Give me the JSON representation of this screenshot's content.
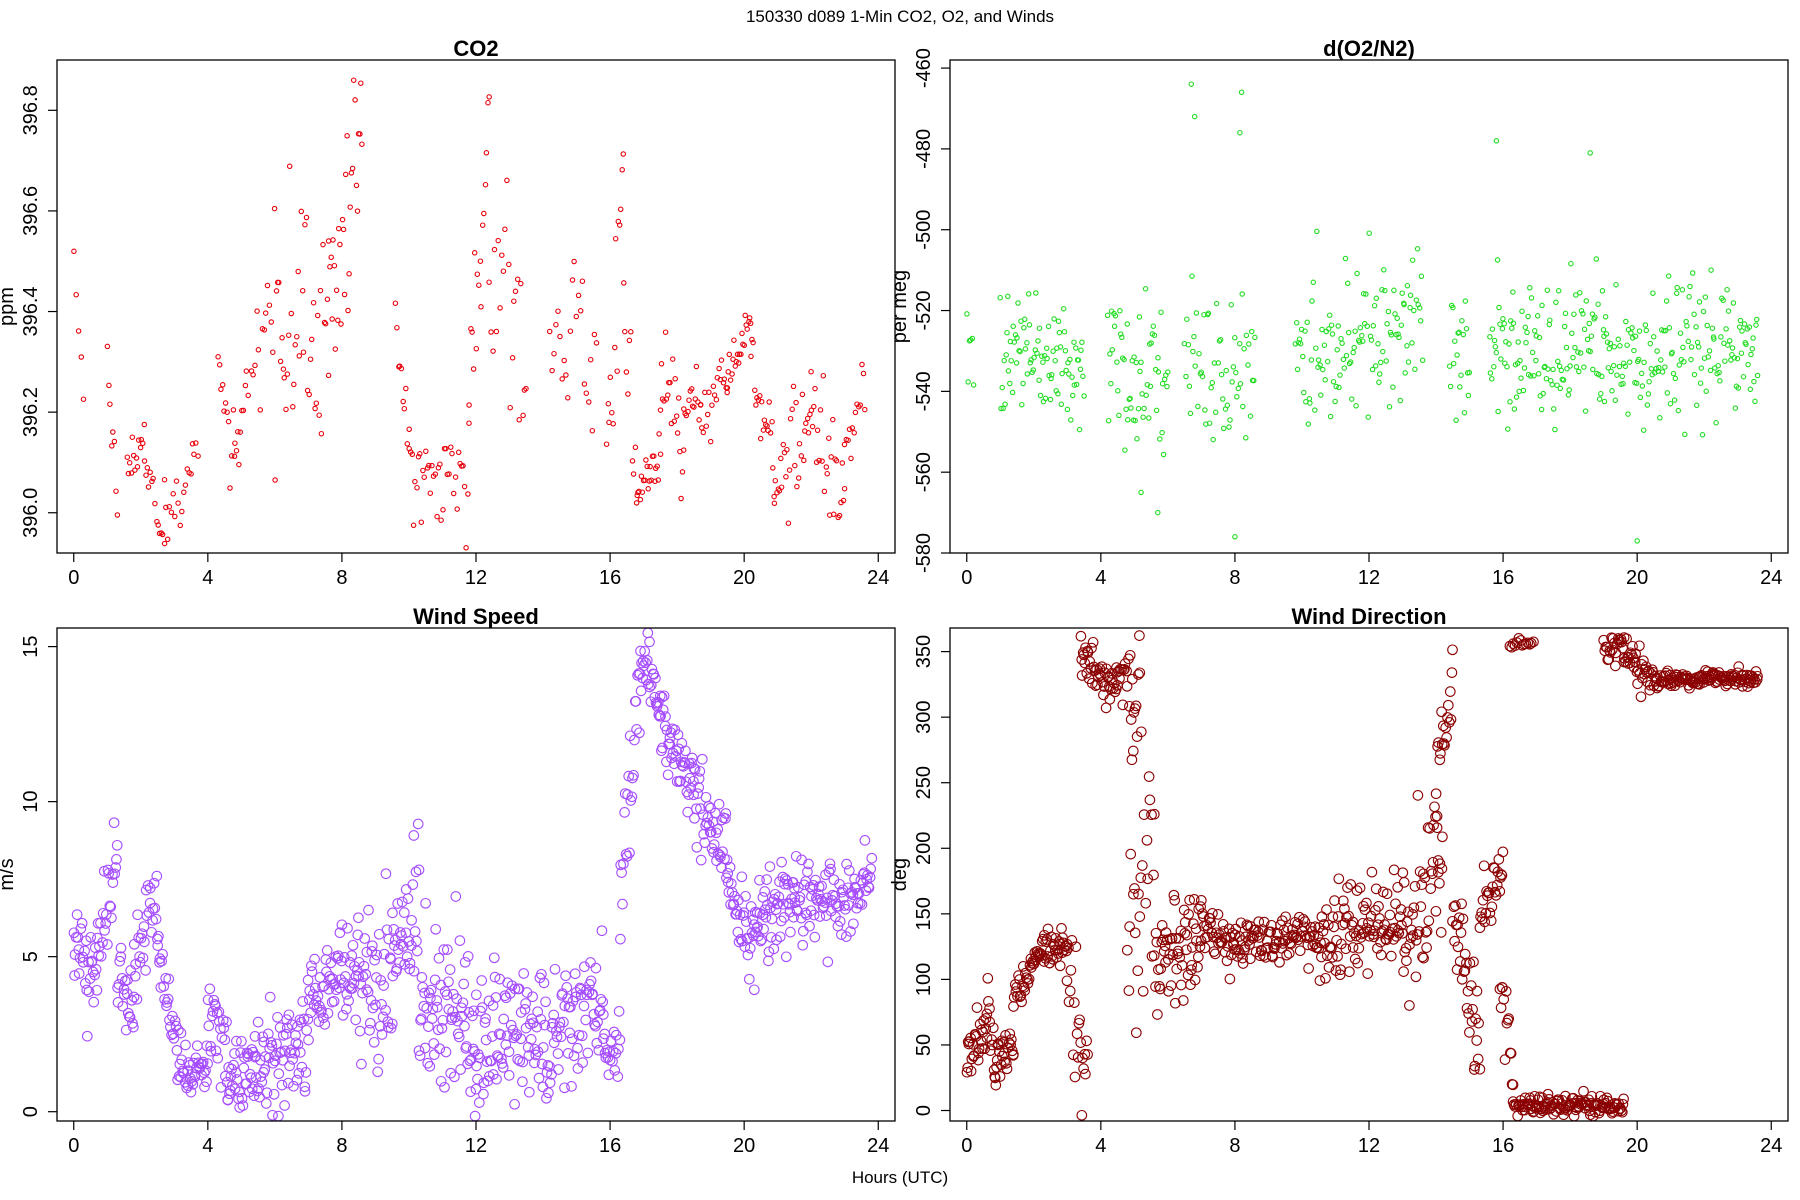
{
  "figure": {
    "suptitle": "150330   d089   1-Min CO2, O2, and Winds",
    "xlabel": "Hours (UTC)",
    "background": "#ffffff"
  },
  "chart_data": [
    {
      "type": "scatter",
      "title": "CO2",
      "xlabel": "",
      "ylabel": "ppm",
      "xlim": [
        -0.5,
        24.5
      ],
      "ylim": [
        395.92,
        396.9
      ],
      "xticks": [
        0,
        4,
        8,
        12,
        16,
        20,
        24
      ],
      "yticks": [
        396.0,
        396.2,
        396.4,
        396.6,
        396.8
      ],
      "ytick_labels": [
        "396.0",
        "396.2",
        "396.4",
        "396.6",
        "396.8"
      ],
      "color": "#e8000b",
      "marker_radius": 2.2,
      "grid": false,
      "segments": [
        {
          "x0": 0.0,
          "x1": 0.3,
          "pts": 5,
          "base": [
            396.52,
            396.22
          ],
          "noise": 0.06
        },
        {
          "x0": 1.0,
          "x1": 1.3,
          "pts": 8,
          "base": [
            396.3,
            396.02
          ],
          "noise": 0.04
        },
        {
          "x0": 1.6,
          "x1": 2.1,
          "pts": 14,
          "base": [
            396.08,
            396.18
          ],
          "noise": 0.02
        },
        {
          "x0": 2.1,
          "x1": 2.7,
          "pts": 14,
          "base": [
            396.12,
            395.94
          ],
          "noise": 0.02
        },
        {
          "x0": 2.7,
          "x1": 3.7,
          "pts": 20,
          "base": [
            395.98,
            396.08
          ],
          "noise": 0.05
        },
        {
          "x0": 4.3,
          "x1": 4.8,
          "pts": 12,
          "base": [
            396.3,
            396.1
          ],
          "noise": 0.06
        },
        {
          "x0": 4.8,
          "x1": 5.2,
          "pts": 10,
          "base": [
            396.08,
            396.25
          ],
          "noise": 0.03
        },
        {
          "x0": 5.3,
          "x1": 6.0,
          "pts": 14,
          "base": [
            396.28,
            396.44
          ],
          "noise": 0.05
        },
        {
          "x0": 6.0,
          "x1": 7.6,
          "pts": 40,
          "base": [
            396.45,
            396.35
          ],
          "noise": 0.11
        },
        {
          "x0": 7.6,
          "x1": 8.6,
          "pts": 30,
          "base": [
            396.4,
            396.72
          ],
          "noise": 0.1
        },
        {
          "x0": 9.6,
          "x1": 10.0,
          "pts": 10,
          "base": [
            396.4,
            396.12
          ],
          "noise": 0.04
        },
        {
          "x0": 10.0,
          "x1": 11.8,
          "pts": 40,
          "base": [
            396.08,
            396.1
          ],
          "noise": 0.05
        },
        {
          "x0": 11.8,
          "x1": 12.4,
          "pts": 16,
          "base": [
            396.22,
            396.72
          ],
          "noise": 0.09
        },
        {
          "x0": 12.4,
          "x1": 13.5,
          "pts": 22,
          "base": [
            396.5,
            396.35
          ],
          "noise": 0.1
        },
        {
          "x0": 14.2,
          "x1": 15.6,
          "pts": 24,
          "base": [
            396.38,
            396.3
          ],
          "noise": 0.09
        },
        {
          "x0": 15.9,
          "x1": 16.4,
          "pts": 14,
          "base": [
            396.12,
            396.68
          ],
          "noise": 0.08
        },
        {
          "x0": 16.4,
          "x1": 16.8,
          "pts": 10,
          "base": [
            396.4,
            396.1
          ],
          "noise": 0.06
        },
        {
          "x0": 16.8,
          "x1": 17.5,
          "pts": 22,
          "base": [
            396.04,
            396.1
          ],
          "noise": 0.02
        },
        {
          "x0": 17.5,
          "x1": 18.2,
          "pts": 20,
          "base": [
            396.28,
            396.12
          ],
          "noise": 0.06
        },
        {
          "x0": 18.2,
          "x1": 18.7,
          "pts": 14,
          "base": [
            396.18,
            396.24
          ],
          "noise": 0.03
        },
        {
          "x0": 18.7,
          "x1": 19.5,
          "pts": 20,
          "base": [
            396.18,
            396.3
          ],
          "noise": 0.03
        },
        {
          "x0": 19.5,
          "x1": 20.2,
          "pts": 22,
          "base": [
            396.26,
            396.39
          ],
          "noise": 0.02
        },
        {
          "x0": 20.2,
          "x1": 20.9,
          "pts": 20,
          "base": [
            396.3,
            396.12
          ],
          "noise": 0.04
        },
        {
          "x0": 20.9,
          "x1": 22.0,
          "pts": 30,
          "base": [
            396.08,
            396.18
          ],
          "noise": 0.05
        },
        {
          "x0": 22.0,
          "x1": 23.0,
          "pts": 26,
          "base": [
            396.2,
            396.05
          ],
          "noise": 0.06
        },
        {
          "x0": 23.0,
          "x1": 23.6,
          "pts": 14,
          "base": [
            396.12,
            396.24
          ],
          "noise": 0.03
        }
      ]
    },
    {
      "type": "scatter",
      "title": "d(O2/N2)",
      "xlabel": "",
      "ylabel": "per meg",
      "xlim": [
        -0.5,
        24.5
      ],
      "ylim": [
        -580,
        -458
      ],
      "xticks": [
        0,
        4,
        8,
        12,
        16,
        20,
        24
      ],
      "yticks": [
        -580,
        -560,
        -540,
        -520,
        -500,
        -480,
        -460
      ],
      "ytick_labels": [
        "-580",
        "-560",
        "-540",
        "-520",
        "-500",
        "-480",
        "-460"
      ],
      "color": "#22dd22",
      "marker_radius": 2.2,
      "grid": false,
      "segments": [
        {
          "x0": 0.0,
          "x1": 0.2,
          "pts": 6,
          "base": [
            -530,
            -530
          ],
          "noise": 8
        },
        {
          "x0": 1.0,
          "x1": 3.5,
          "pts": 90,
          "base": [
            -528,
            -536
          ],
          "noise": 8
        },
        {
          "x0": 4.2,
          "x1": 6.0,
          "pts": 60,
          "base": [
            -538,
            -535
          ],
          "noise": 10
        },
        {
          "x0": 6.5,
          "x1": 8.6,
          "pts": 60,
          "base": [
            -530,
            -535
          ],
          "noise": 10
        },
        {
          "x0": 9.8,
          "x1": 13.6,
          "pts": 120,
          "base": [
            -533,
            -520
          ],
          "noise": 9
        },
        {
          "x0": 14.4,
          "x1": 15.0,
          "pts": 20,
          "base": [
            -530,
            -530
          ],
          "noise": 9
        },
        {
          "x0": 15.6,
          "x1": 19.0,
          "pts": 120,
          "base": [
            -530,
            -528
          ],
          "noise": 9
        },
        {
          "x0": 19.0,
          "x1": 23.6,
          "pts": 160,
          "base": [
            -532,
            -530
          ],
          "noise": 8
        }
      ],
      "outliers": [
        {
          "x": 6.7,
          "y": -464
        },
        {
          "x": 6.8,
          "y": -472
        },
        {
          "x": 8.2,
          "y": -466
        },
        {
          "x": 8.15,
          "y": -476
        },
        {
          "x": 15.8,
          "y": -478
        },
        {
          "x": 18.6,
          "y": -481
        },
        {
          "x": 8.0,
          "y": -576
        },
        {
          "x": 5.7,
          "y": -570
        },
        {
          "x": 20.0,
          "y": -577
        },
        {
          "x": 5.2,
          "y": -565
        }
      ]
    },
    {
      "type": "scatter",
      "title": "Wind Speed",
      "xlabel": "",
      "ylabel": "m/s",
      "xlim": [
        -0.5,
        24.5
      ],
      "ylim": [
        -0.3,
        15.6
      ],
      "xticks": [
        0,
        4,
        8,
        12,
        16,
        20,
        24
      ],
      "yticks": [
        0,
        5,
        10,
        15
      ],
      "ytick_labels": [
        "0",
        "5",
        "10",
        "15"
      ],
      "color": "#a64dff",
      "marker_radius": 4.8,
      "grid": false,
      "segments": [
        {
          "x0": 0.0,
          "x1": 0.7,
          "pts": 30,
          "base": [
            5.5,
            4.0
          ],
          "noise": 0.7
        },
        {
          "x0": 0.7,
          "x1": 1.3,
          "pts": 25,
          "base": [
            5.5,
            7.5
          ],
          "noise": 0.7
        },
        {
          "x0": 1.3,
          "x1": 1.8,
          "pts": 22,
          "base": [
            4.5,
            3.0
          ],
          "noise": 0.8
        },
        {
          "x0": 1.8,
          "x1": 2.5,
          "pts": 28,
          "base": [
            5.0,
            7.0
          ],
          "noise": 0.8
        },
        {
          "x0": 2.5,
          "x1": 3.2,
          "pts": 28,
          "base": [
            5.0,
            1.5
          ],
          "noise": 0.6
        },
        {
          "x0": 3.2,
          "x1": 4.0,
          "pts": 35,
          "base": [
            1.3,
            1.4
          ],
          "noise": 0.35
        },
        {
          "x0": 4.0,
          "x1": 4.6,
          "pts": 25,
          "base": [
            3.5,
            2.0
          ],
          "noise": 0.9
        },
        {
          "x0": 4.6,
          "x1": 5.4,
          "pts": 35,
          "base": [
            1.0,
            1.2
          ],
          "noise": 0.6
        },
        {
          "x0": 5.4,
          "x1": 7.0,
          "pts": 70,
          "base": [
            1.2,
            2.5
          ],
          "noise": 0.8
        },
        {
          "x0": 7.0,
          "x1": 8.5,
          "pts": 65,
          "base": [
            3.5,
            4.8
          ],
          "noise": 0.7
        },
        {
          "x0": 8.5,
          "x1": 9.5,
          "pts": 45,
          "base": [
            4.5,
            4.0
          ],
          "noise": 1.3
        },
        {
          "x0": 9.5,
          "x1": 10.3,
          "pts": 35,
          "base": [
            5.5,
            6.5
          ],
          "noise": 1.2
        },
        {
          "x0": 10.3,
          "x1": 12.0,
          "pts": 75,
          "base": [
            3.0,
            2.8
          ],
          "noise": 1.4
        },
        {
          "x0": 12.0,
          "x1": 14.0,
          "pts": 85,
          "base": [
            2.3,
            2.5
          ],
          "noise": 1.1
        },
        {
          "x0": 14.0,
          "x1": 15.8,
          "pts": 75,
          "base": [
            2.0,
            3.8
          ],
          "noise": 1.2
        },
        {
          "x0": 15.8,
          "x1": 16.3,
          "pts": 20,
          "base": [
            2.0,
            2.0
          ],
          "noise": 0.4
        },
        {
          "x0": 16.3,
          "x1": 16.9,
          "pts": 25,
          "base": [
            7.0,
            14.5
          ],
          "noise": 1.0
        },
        {
          "x0": 16.9,
          "x1": 17.5,
          "pts": 28,
          "base": [
            14.8,
            13.0
          ],
          "noise": 0.6
        },
        {
          "x0": 17.5,
          "x1": 18.5,
          "pts": 45,
          "base": [
            12.5,
            10.5
          ],
          "noise": 0.6
        },
        {
          "x0": 18.5,
          "x1": 19.5,
          "pts": 45,
          "base": [
            10.0,
            8.0
          ],
          "noise": 0.7
        },
        {
          "x0": 19.5,
          "x1": 20.3,
          "pts": 35,
          "base": [
            7.5,
            5.5
          ],
          "noise": 0.8
        },
        {
          "x0": 20.3,
          "x1": 21.5,
          "pts": 55,
          "base": [
            6.0,
            7.0
          ],
          "noise": 0.8
        },
        {
          "x0": 21.5,
          "x1": 23.8,
          "pts": 95,
          "base": [
            6.5,
            7.3
          ],
          "noise": 0.7
        }
      ]
    },
    {
      "type": "scatter",
      "title": "Wind Direction",
      "xlabel": "",
      "ylabel": "deg",
      "xlim": [
        -0.5,
        24.5
      ],
      "ylim": [
        -8,
        368
      ],
      "xticks": [
        0,
        4,
        8,
        12,
        16,
        20,
        24
      ],
      "yticks": [
        0,
        50,
        100,
        150,
        200,
        250,
        300,
        350
      ],
      "ytick_labels": [
        "0",
        "50",
        "100",
        "150",
        "200",
        "250",
        "300",
        "350"
      ],
      "color": "#8b0000",
      "marker_radius": 4.8,
      "grid": false,
      "segments": [
        {
          "x0": 0.0,
          "x1": 0.6,
          "pts": 28,
          "base": [
            45,
            60
          ],
          "noise": 10
        },
        {
          "x0": 0.6,
          "x1": 0.9,
          "pts": 14,
          "base": [
            85,
            25
          ],
          "noise": 10
        },
        {
          "x0": 0.9,
          "x1": 1.4,
          "pts": 22,
          "base": [
            40,
            60
          ],
          "noise": 8
        },
        {
          "x0": 1.4,
          "x1": 2.0,
          "pts": 26,
          "base": [
            80,
            118
          ],
          "noise": 6
        },
        {
          "x0": 2.0,
          "x1": 3.0,
          "pts": 45,
          "base": [
            115,
            130
          ],
          "noise": 7
        },
        {
          "x0": 3.0,
          "x1": 3.6,
          "pts": 22,
          "base": [
            100,
            20
          ],
          "noise": 20
        },
        {
          "x0": 3.4,
          "x1": 4.5,
          "pts": 45,
          "base": [
            345,
            325
          ],
          "noise": 10
        },
        {
          "x0": 4.5,
          "x1": 5.2,
          "pts": 25,
          "base": [
            330,
            310
          ],
          "noise": 20
        },
        {
          "x0": 4.8,
          "x1": 5.6,
          "pts": 25,
          "base": [
            130,
            230
          ],
          "noise": 70
        },
        {
          "x0": 5.6,
          "x1": 7.0,
          "pts": 60,
          "base": [
            110,
            140
          ],
          "noise": 25
        },
        {
          "x0": 7.0,
          "x1": 8.0,
          "pts": 40,
          "base": [
            150,
            125
          ],
          "noise": 10
        },
        {
          "x0": 8.0,
          "x1": 10.5,
          "pts": 100,
          "base": [
            130,
            135
          ],
          "noise": 9
        },
        {
          "x0": 10.5,
          "x1": 13.0,
          "pts": 100,
          "base": [
            125,
            150
          ],
          "noise": 18
        },
        {
          "x0": 13.0,
          "x1": 14.2,
          "pts": 50,
          "base": [
            140,
            190
          ],
          "noise": 35
        },
        {
          "x0": 14.0,
          "x1": 14.5,
          "pts": 20,
          "base": [
            240,
            320
          ],
          "noise": 20
        },
        {
          "x0": 14.5,
          "x1": 15.3,
          "pts": 35,
          "base": [
            140,
            50
          ],
          "noise": 25
        },
        {
          "x0": 15.3,
          "x1": 16.0,
          "pts": 28,
          "base": [
            150,
            180
          ],
          "noise": 12
        },
        {
          "x0": 15.9,
          "x1": 16.3,
          "pts": 14,
          "base": [
            100,
            15
          ],
          "noise": 20
        },
        {
          "x0": 16.2,
          "x1": 16.9,
          "pts": 14,
          "base": [
            356,
            357
          ],
          "noise": 2
        },
        {
          "x0": 16.3,
          "x1": 19.6,
          "pts": 130,
          "base": [
            5,
            3
          ],
          "noise": 4
        },
        {
          "x0": 19.0,
          "x1": 19.6,
          "pts": 22,
          "base": [
            352,
            355
          ],
          "noise": 5
        },
        {
          "x0": 19.6,
          "x1": 20.6,
          "pts": 40,
          "base": [
            345,
            330
          ],
          "noise": 7
        },
        {
          "x0": 20.6,
          "x1": 23.6,
          "pts": 120,
          "base": [
            328,
            330
          ],
          "noise": 3
        }
      ]
    }
  ]
}
